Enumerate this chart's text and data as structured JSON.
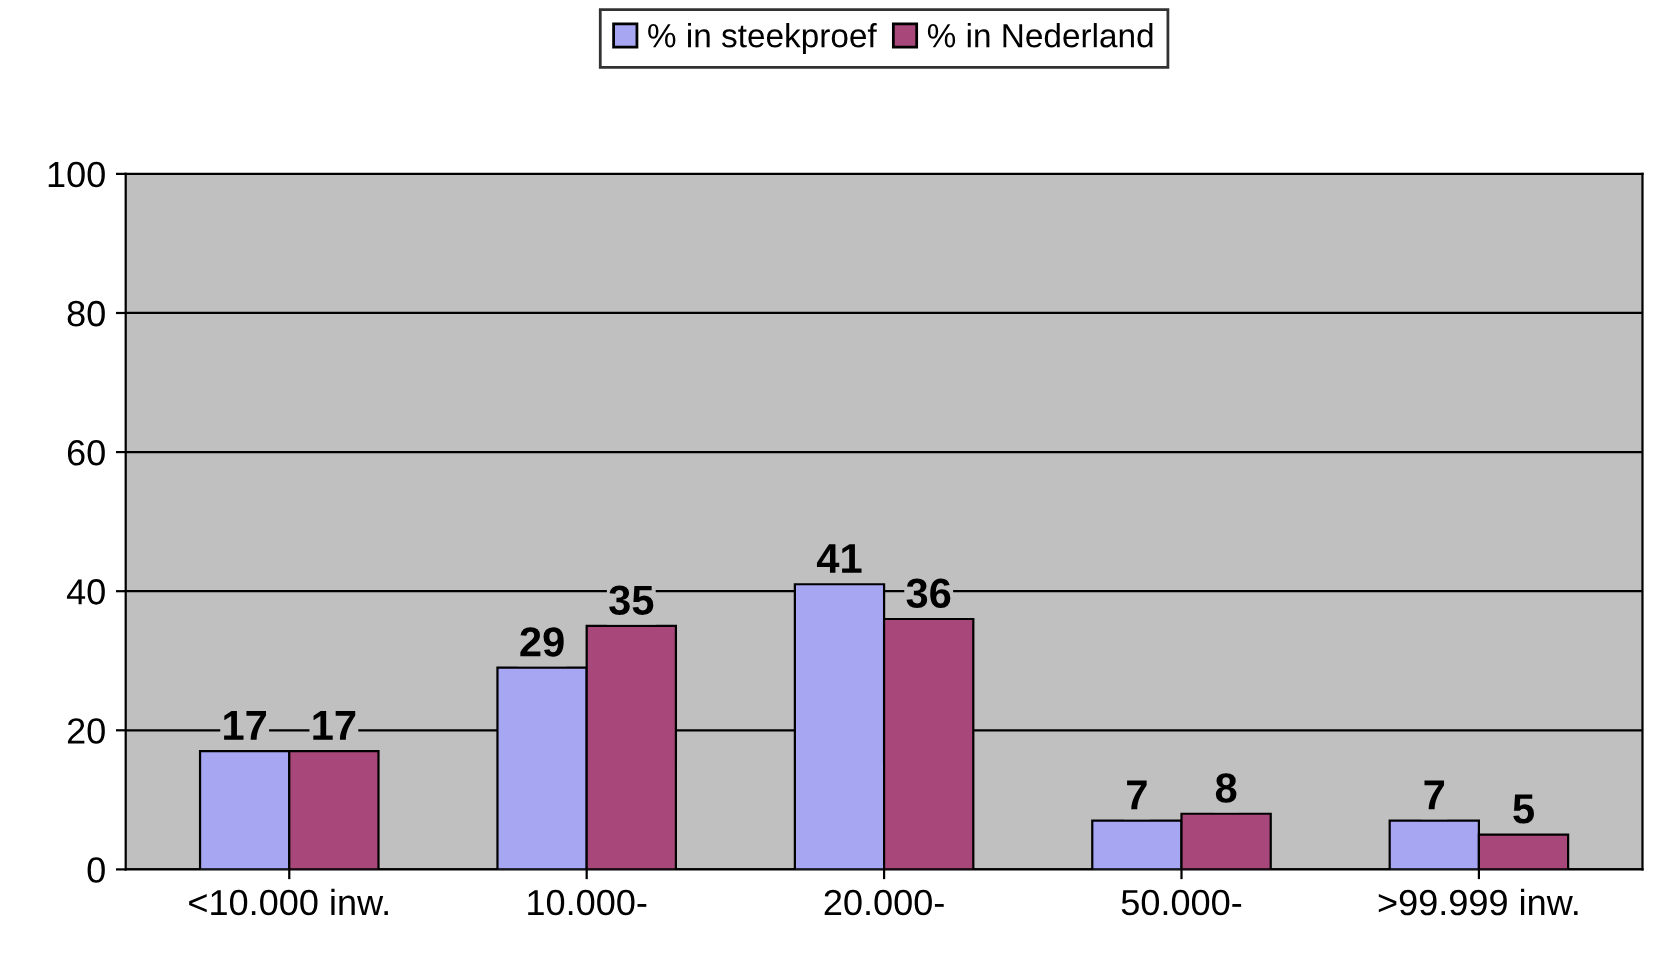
{
  "chart_data": {
    "type": "bar",
    "categories": [
      "<10.000 inw.",
      "10.000-",
      "20.000-",
      "50.000-",
      ">99.999 inw."
    ],
    "series": [
      {
        "name": "% in steekproef",
        "color": "#a6a6f2",
        "values": [
          17,
          29,
          41,
          7,
          7
        ]
      },
      {
        "name": "% in Nederland",
        "color": "#a8487a",
        "values": [
          17,
          35,
          36,
          8,
          5
        ]
      }
    ],
    "ylim": [
      0,
      100
    ],
    "yticks": [
      0,
      20,
      40,
      60,
      80,
      100
    ],
    "grid": "y",
    "legend": "top",
    "data_labels": true
  }
}
